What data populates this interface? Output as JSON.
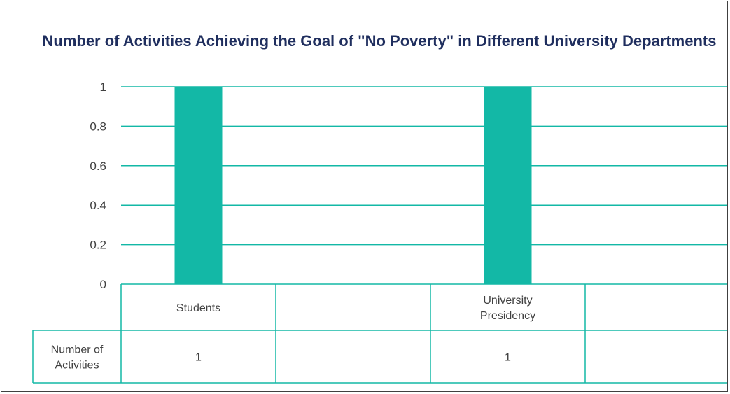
{
  "chart_data": {
    "type": "bar",
    "title": "Number of Activities Achieving the Goal of \"No Poverty\" in Different University Departments",
    "categories": [
      "Students",
      "",
      "University Presidency",
      ""
    ],
    "category_lines": [
      [
        "Students"
      ],
      [],
      [
        "University",
        "Presidency"
      ],
      []
    ],
    "series": [
      {
        "name": "Number of Activities",
        "name_lines": [
          "Number of",
          "Activities"
        ],
        "values": [
          1,
          null,
          1,
          null
        ],
        "table_values": [
          "1",
          "",
          "1",
          ""
        ]
      }
    ],
    "ylim": [
      0,
      1
    ],
    "yticks": [
      "0",
      "0.2",
      "0.4",
      "0.6",
      "0.8",
      "1"
    ],
    "ytick_values": [
      0,
      0.2,
      0.4,
      0.6,
      0.8,
      1
    ],
    "grid": true,
    "legend": "data-table",
    "colors": {
      "bar": "#13b8a6",
      "grid": "#13b8a6",
      "title": "#1f2e5e",
      "text": "#404040"
    }
  }
}
